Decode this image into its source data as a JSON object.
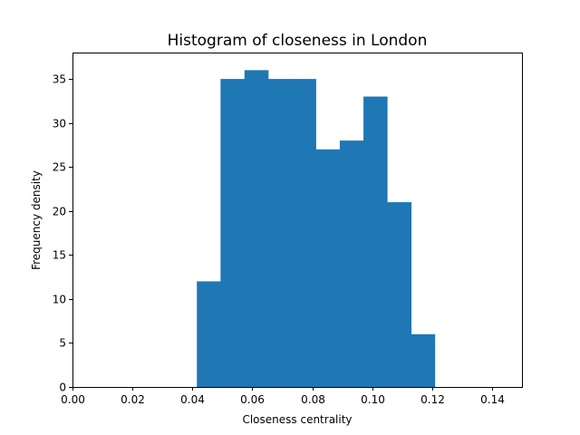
{
  "chart_data": {
    "type": "bar",
    "title": "Histogram of closeness in London",
    "xlabel": "Closeness centrality",
    "ylabel": "Frequency density",
    "xlim": [
      0,
      0.15
    ],
    "ylim": [
      0,
      38
    ],
    "xticks": [
      0.0,
      0.02,
      0.04,
      0.06,
      0.08,
      0.1,
      0.12,
      0.14
    ],
    "xtick_labels": [
      "0.00",
      "0.02",
      "0.04",
      "0.06",
      "0.08",
      "0.10",
      "0.12",
      "0.14"
    ],
    "yticks": [
      0,
      5,
      10,
      15,
      20,
      25,
      30,
      35
    ],
    "ytick_labels": [
      "0",
      "5",
      "10",
      "15",
      "20",
      "25",
      "30",
      "35"
    ],
    "bar_color": "#1f77b4",
    "grid": false,
    "bins": [
      {
        "start": 0.0415,
        "end": 0.0494,
        "value": 12
      },
      {
        "start": 0.0494,
        "end": 0.0574,
        "value": 35
      },
      {
        "start": 0.0574,
        "end": 0.0653,
        "value": 36
      },
      {
        "start": 0.0653,
        "end": 0.0733,
        "value": 35
      },
      {
        "start": 0.0733,
        "end": 0.0812,
        "value": 35
      },
      {
        "start": 0.0812,
        "end": 0.0892,
        "value": 27
      },
      {
        "start": 0.0892,
        "end": 0.0971,
        "value": 28
      },
      {
        "start": 0.0971,
        "end": 0.105,
        "value": 33
      },
      {
        "start": 0.105,
        "end": 0.113,
        "value": 21
      },
      {
        "start": 0.113,
        "end": 0.1209,
        "value": 6
      }
    ]
  }
}
